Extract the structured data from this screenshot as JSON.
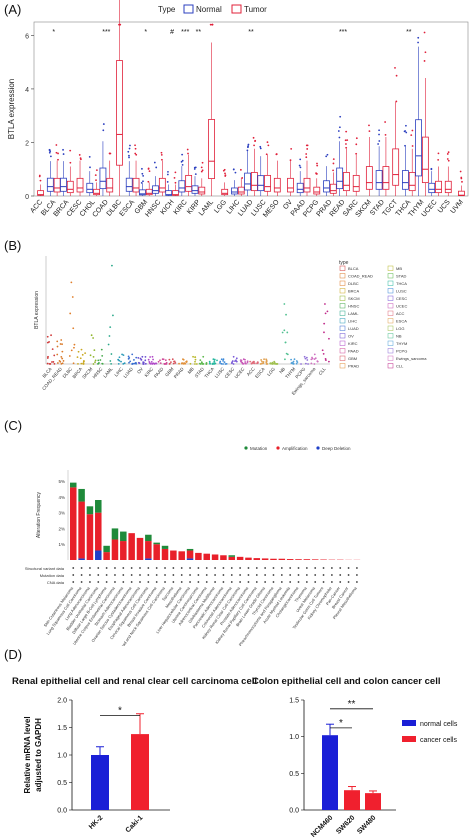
{
  "panels": {
    "a": "(A)",
    "b": "(B)",
    "c": "(C)",
    "d": "(D)"
  },
  "colors": {
    "normal": "#2b3fbf",
    "tumor": "#e0203a",
    "mutation": "#1f8a3a",
    "amplification": "#e8202a",
    "deep_deletion": "#1f3fc8",
    "bar_blue": "#1a1fd6",
    "bar_red": "#f0202e"
  },
  "chart_data": [
    {
      "type": "box",
      "panel": "A",
      "legend": {
        "title": "Type",
        "entries": [
          "Normal",
          "Tumor"
        ]
      },
      "ylabel": "BTLA expression",
      "ylim": [
        0,
        6.5
      ],
      "yticks": [
        "0",
        "2",
        "4",
        "6"
      ],
      "categories": [
        "ACC",
        "BLCA",
        "BRCA",
        "CESC",
        "CHOL",
        "COAD",
        "DLBC",
        "ESCA",
        "GBM",
        "HNSC",
        "KICH",
        "KIRC",
        "KIRP",
        "LAML",
        "LGG",
        "LIHC",
        "LUAD",
        "LUSC",
        "MESO",
        "OV",
        "PAAD",
        "PCPG",
        "PRAD",
        "READ",
        "SARC",
        "SKCM",
        "STAD",
        "TGCT",
        "THCA",
        "THYM",
        "UCEC",
        "UCS",
        "UVM"
      ],
      "significance": [
        "",
        "*",
        "",
        "",
        "",
        "***",
        "",
        "",
        "*",
        "",
        "#",
        "***",
        "**",
        "",
        "",
        "",
        "**",
        "",
        "",
        "",
        "",
        "",
        "",
        "***",
        "",
        "",
        "",
        "",
        "**",
        "",
        "",
        "",
        ""
      ],
      "normal_median": [
        null,
        0.35,
        0.35,
        null,
        0.25,
        0.55,
        null,
        0.35,
        0.08,
        0.2,
        0.05,
        0.3,
        0.2,
        null,
        null,
        0.15,
        0.45,
        0.4,
        null,
        null,
        0.25,
        null,
        0.3,
        0.55,
        null,
        null,
        0.5,
        null,
        0.5,
        1.5,
        0.25,
        null,
        null
      ],
      "tumor_median": [
        0.05,
        0.3,
        0.25,
        0.3,
        0.1,
        0.3,
        2.3,
        0.3,
        0.1,
        0.3,
        0.05,
        0.35,
        0.15,
        1.3,
        0.1,
        0.15,
        0.4,
        0.35,
        0.3,
        0.3,
        0.3,
        0.15,
        0.2,
        0.4,
        0.35,
        0.5,
        0.5,
        0.8,
        0.4,
        1.0,
        0.25,
        0.25,
        0.03
      ]
    },
    {
      "type": "scatter",
      "panel": "B",
      "ylabel": "BTLA expression",
      "legend_title": "type",
      "categories": [
        "BLCA",
        "COAD_READ",
        "DLBC",
        "BRCA",
        "SKCM",
        "HNSC",
        "LAML",
        "LIHC",
        "LUAD",
        "OV",
        "KIRC",
        "PAAD",
        "GBM",
        "PRAD",
        "MB",
        "STAD",
        "THCA",
        "LUSC",
        "CESC",
        "UCEC",
        "ACC",
        "ESCA",
        "LGG",
        "NB",
        "THYM",
        "PCPG",
        "Ewings_sarcoma",
        "CLL"
      ],
      "peak_values": [
        1.2,
        1.0,
        3.4,
        0.6,
        1.2,
        0.6,
        4.1,
        0.4,
        0.4,
        0.3,
        0.3,
        0.2,
        0.2,
        0.2,
        0.3,
        0.3,
        0.2,
        0.2,
        0.3,
        0.2,
        0.1,
        0.2,
        0.1,
        2.5,
        0.2,
        0.3,
        0.4,
        2.5
      ]
    },
    {
      "type": "bar",
      "panel": "C",
      "ylabel": "Alteration Frequency",
      "yticks": [
        "5%",
        "4%",
        "3%",
        "2%",
        "1%"
      ],
      "legend": [
        "Mutation",
        "Amplification",
        "Deep Deletion"
      ],
      "row_labels": [
        "Structural variant data",
        "Mutation data",
        "CNA data"
      ],
      "categories": [
        "Skin Cutaneous Melanoma",
        "Lung Squamous Cell Carcinoma",
        "Lung Adenocarcinoma",
        "Bladder Urothelial Carcinoma",
        "Diffuse Large B-Cell Lymphoma",
        "Uterine Corpus Endometrial Carcinoma",
        "Stomach Adenocarcinoma",
        "Ovarian Serous Cystadenocarcinoma",
        "Esophageal Adenocarcinoma",
        "Cervical Squamous Cell Carcinoma",
        "Breast Invasive Carcinoma",
        "Head and Neck Squamous Cell Carcinoma",
        "Sarcoma",
        "Mesothelioma",
        "Liver Hepatocellular Carcinoma",
        "Uterine Carcinosarcoma",
        "Adrenocortical Carcinoma",
        "Glioblastoma Multiforme",
        "Pancreatic Adenocarcinoma",
        "Colorectal Adenocarcinoma",
        "Kidney Renal Clear Cell Carcinoma",
        "Prostate Adenocarcinoma",
        "Kidney Renal Papillary Cell Carcinoma",
        "Brain Lower Grade Glioma",
        "Thyroid Carcinoma",
        "Pheochromocytoma and Paraganglioma",
        "Acute Myeloid Leukemia",
        "Cholangiocarcinoma",
        "Thymoma",
        "Uveal Melanoma",
        "Testicular Germ Cell Tumors",
        "Kidney Chromophobe",
        "Pan-Cancer",
        "Breast Cancer",
        "Pleural Mesothelioma"
      ],
      "series": [
        {
          "name": "Mutation",
          "values": [
            0.3,
            0.8,
            0.5,
            0.8,
            0.4,
            0.7,
            0.6,
            0.0,
            0.0,
            0.4,
            0.1,
            0.2,
            0.0,
            0.0,
            0.1,
            0.0,
            0.0,
            0.0,
            0.0,
            0.1,
            0.0,
            0.0,
            0.0,
            0.0,
            0.0,
            0.0,
            0.0,
            0.0,
            0.0,
            0.0,
            0.0,
            0.0,
            0.0,
            0.0,
            0.0
          ]
        },
        {
          "name": "Amplification",
          "values": [
            4.6,
            3.6,
            2.9,
            2.4,
            0.5,
            1.3,
            1.2,
            1.7,
            1.4,
            1.1,
            1.0,
            0.7,
            0.6,
            0.55,
            0.5,
            0.45,
            0.4,
            0.35,
            0.3,
            0.2,
            0.2,
            0.15,
            0.12,
            0.1,
            0.08,
            0.08,
            0.06,
            0.05,
            0.05,
            0.04,
            0.03,
            0.02,
            0.02,
            0.01,
            0.01
          ]
        },
        {
          "name": "Deep Deletion",
          "values": [
            0.0,
            0.1,
            0.0,
            0.6,
            0.0,
            0.0,
            0.0,
            0.0,
            0.0,
            0.1,
            0.0,
            0.0,
            0.0,
            0.0,
            0.1,
            0.0,
            0.0,
            0.0,
            0.0,
            0.0,
            0.0,
            0.0,
            0.0,
            0.0,
            0.0,
            0.0,
            0.0,
            0.0,
            0.0,
            0.0,
            0.0,
            0.0,
            0.0,
            0.0,
            0.0
          ]
        }
      ]
    },
    {
      "type": "bar",
      "panel": "D1",
      "title": "Renal epithelial cell and renal clear cell carcinoma cell",
      "ylabel": "Relative mRNA level adjusted to GAPDH",
      "ylim": [
        0,
        2.0
      ],
      "yticks": [
        "0.0",
        "0.5",
        "1.0",
        "1.5",
        "2.0"
      ],
      "categories": [
        "HK-2",
        "Caki-1"
      ],
      "values": [
        1.0,
        1.38
      ],
      "errors": [
        0.15,
        0.37
      ],
      "significance": "*"
    },
    {
      "type": "bar",
      "panel": "D2",
      "title": "Colon  epithelial cell and colon cancer cell",
      "ylim": [
        0,
        1.5
      ],
      "yticks": [
        "0.0",
        "0.5",
        "1.0",
        "1.5"
      ],
      "categories": [
        "NCM460",
        "SW620",
        "SW480"
      ],
      "values": [
        1.02,
        0.27,
        0.23
      ],
      "errors": [
        0.15,
        0.05,
        0.03
      ],
      "significance": [
        "*",
        "**"
      ],
      "legend": [
        "normal cells",
        "cancer cells"
      ]
    }
  ]
}
